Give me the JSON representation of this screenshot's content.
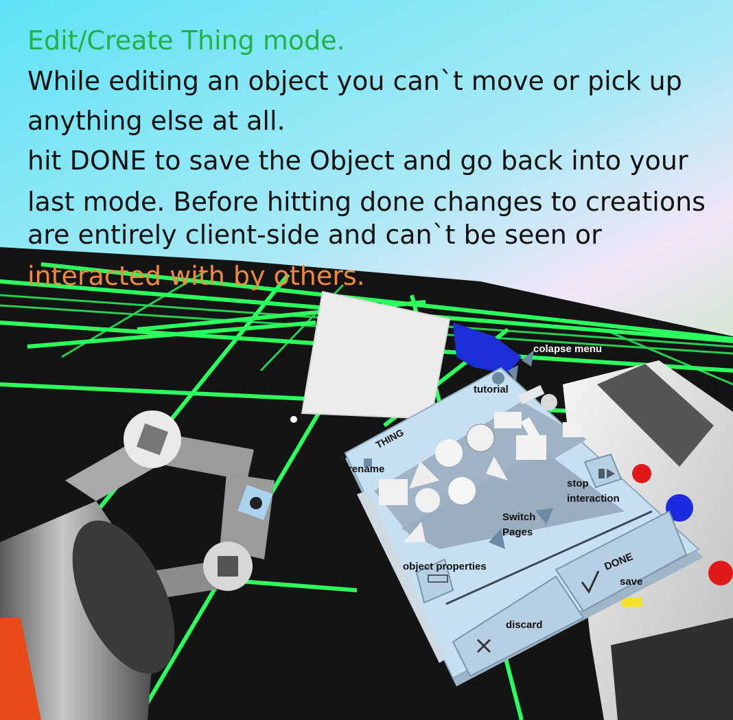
{
  "caption": {
    "heading": "Edit/Create Thing mode.",
    "lines": [
      "While editing an object you can`t move or pick up",
      "anything else at all.",
      "hit DONE to save the Object and go back into your",
      "last mode. Before hitting done changes to creations",
      "are entirely client-side and can`t be seen or"
    ],
    "highlight": "interacted with by others."
  },
  "menu": {
    "title": "THING",
    "labels": {
      "collapse": "colapse menu",
      "tutorial": "tutorial",
      "rename": "rename",
      "stop_interaction": "stop\ninteraction",
      "switch_pages": "Switch\nPages",
      "object_properties": "object properties",
      "done": "DONE",
      "save": "save",
      "discard": "discard"
    }
  },
  "colors": {
    "grid": "#2bff5e",
    "sky_top": "#5ee3f5",
    "sky_horizon": "#f1e6f7",
    "panel": "#c6dff1",
    "heading": "#22b04a",
    "accent": "#f2893d"
  }
}
